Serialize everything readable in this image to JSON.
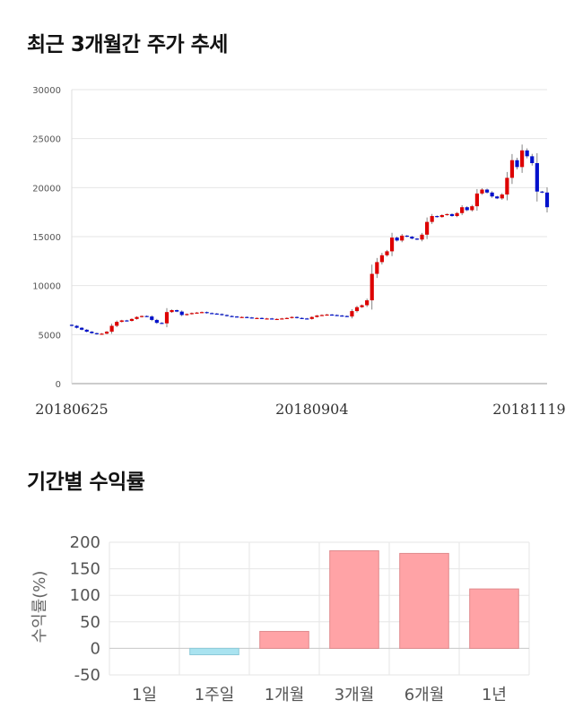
{
  "sections": {
    "price_title": "최근 3개월간 주가 추세",
    "returns_title": "기간별 수익률"
  },
  "colors": {
    "up": "#dd0000",
    "down": "#0011cc",
    "bar_positive": "#ffa3a6",
    "bar_negative": "#a9e3f0",
    "grid": "#e6e6e6"
  },
  "chart_data": [
    {
      "type": "candlestick",
      "title": "최근 3개월간 주가 추세",
      "ylim": [
        0,
        30000
      ],
      "y_ticks": [
        "0",
        "5000",
        "10000",
        "15000",
        "20000",
        "25000",
        "30000"
      ],
      "x_tick_labels": [
        {
          "index": 0,
          "label": "20180625"
        },
        {
          "index": 48,
          "label": "20180904"
        },
        {
          "index": 98,
          "label": "20181119"
        }
      ],
      "grid": true,
      "closes": [
        5900,
        5700,
        5500,
        5300,
        5150,
        5050,
        5100,
        5300,
        5900,
        6300,
        6450,
        6400,
        6600,
        6800,
        6900,
        6850,
        6500,
        6200,
        6150,
        7300,
        7500,
        7350,
        7000,
        7100,
        7200,
        7250,
        7300,
        7200,
        7150,
        7100,
        7000,
        6900,
        6850,
        6800,
        6800,
        6750,
        6700,
        6700,
        6650,
        6650,
        6600,
        6600,
        6650,
        6700,
        6800,
        6700,
        6650,
        6600,
        6800,
        6950,
        7000,
        7050,
        7000,
        6950,
        6900,
        6850,
        7400,
        7800,
        8000,
        8500,
        11200,
        12400,
        13100,
        13500,
        14900,
        14600,
        15100,
        15000,
        14800,
        14700,
        15200,
        16500,
        17100,
        17000,
        17200,
        17300,
        17100,
        17400,
        18000,
        17700,
        18100,
        19400,
        19800,
        19500,
        19100,
        18900,
        19300,
        21000,
        22800,
        22100,
        23800,
        23200,
        22500,
        19600,
        19500,
        18000
      ],
      "candle_colors": [
        "up_down_alternating_as_shown"
      ]
    },
    {
      "type": "bar",
      "categories": [
        "1일",
        "1주일",
        "1개월",
        "3개월",
        "6개월",
        "1년"
      ],
      "values": [
        0,
        -12,
        32,
        184,
        179,
        112
      ],
      "ylabel": "수익률(%)",
      "ylim": [
        -50,
        200
      ],
      "y_ticks": [
        "-50",
        "0",
        "50",
        "100",
        "150",
        "200"
      ],
      "grid": true
    }
  ]
}
